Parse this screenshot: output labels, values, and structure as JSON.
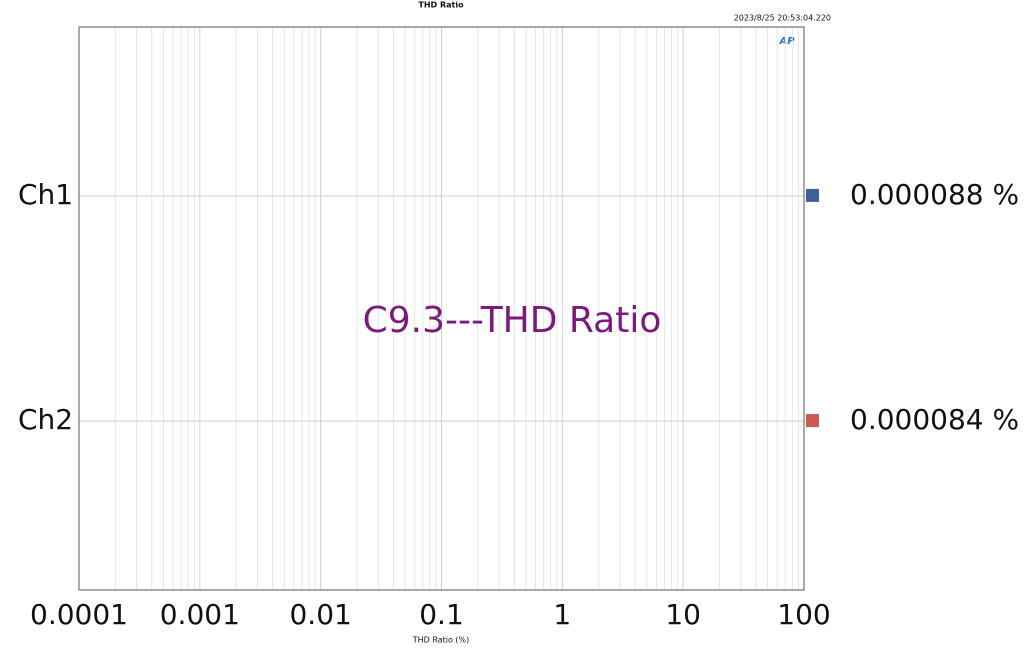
{
  "chart_data": {
    "type": "bar",
    "orientation": "horizontal",
    "title": "THD Ratio",
    "timestamp": "2023/8/25 20:53:04.220",
    "logo": "AP",
    "annotation": "C9.3---THD Ratio",
    "annotation_color": "#7b1a7b",
    "xlabel": "THD Ratio (%)",
    "categories": [
      "Ch1",
      "Ch2"
    ],
    "values": [
      8.8e-05,
      8.4e-05
    ],
    "value_labels": [
      "0.000088 %",
      "0.000084 %"
    ],
    "colors": [
      "#3f5f9a",
      "#cc5a55"
    ],
    "xscale": "log",
    "xlim": [
      0.0001,
      100
    ],
    "xticks": [
      0.0001,
      0.001,
      0.01,
      0.1,
      1,
      10,
      100
    ],
    "grid": true
  }
}
